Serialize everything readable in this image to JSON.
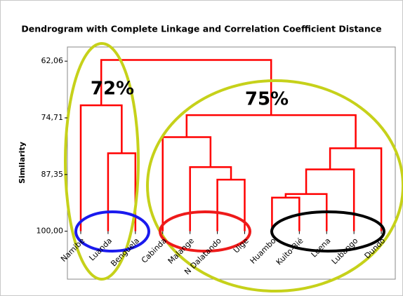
{
  "chart_data": {
    "type": "dendrogram",
    "title": "Dendrogram with Complete Linkage and Correlation Coefficient Distance",
    "y_label": "Similarity",
    "ylim": [
      110.7,
      58.9
    ],
    "yticks": [
      {
        "value": 62.06,
        "label": "62,06"
      },
      {
        "value": 74.71,
        "label": "74,71"
      },
      {
        "value": 87.35,
        "label": "87,35"
      },
      {
        "value": 100,
        "label": "100,00"
      }
    ],
    "color": "#ff0000",
    "annotations": [
      {
        "text": "72%",
        "color": "#1a1aee"
      },
      {
        "text": "75%",
        "color": "#1a1aee"
      }
    ],
    "tree": {
      "similarity": 61.8,
      "children": [
        {
          "similarity": 71.9,
          "children": [
            {
              "label": "Namibe",
              "similarity": 100
            },
            {
              "similarity": 82.6,
              "children": [
                {
                  "label": "Luanda",
                  "similarity": 100
                },
                {
                  "label": "Benguela",
                  "similarity": 100
                }
              ]
            }
          ]
        },
        {
          "similarity": 74.1,
          "children": [
            {
              "similarity": 79.0,
              "children": [
                {
                  "label": "Cabinda",
                  "similarity": 100
                },
                {
                  "similarity": 85.7,
                  "children": [
                    {
                      "label": "Malange",
                      "similarity": 100
                    },
                    {
                      "similarity": 88.5,
                      "children": [
                        {
                          "label": "N Dalatando",
                          "similarity": 100
                        },
                        {
                          "label": "Uige",
                          "similarity": 100
                        }
                      ]
                    }
                  ]
                }
              ]
            },
            {
              "similarity": 81.5,
              "children": [
                {
                  "similarity": 86.2,
                  "children": [
                    {
                      "similarity": 91.7,
                      "children": [
                        {
                          "similarity": 92.5,
                          "children": [
                            {
                              "label": "Huambo",
                              "similarity": 100
                            },
                            {
                              "label": "Kuito-Bié",
                              "similarity": 100
                            }
                          ]
                        },
                        {
                          "label": "Luena",
                          "similarity": 100
                        }
                      ]
                    },
                    {
                      "label": "Lubango",
                      "similarity": 100
                    }
                  ]
                },
                {
                  "label": "Dundo",
                  "similarity": 100
                }
              ]
            }
          ]
        }
      ]
    }
  }
}
